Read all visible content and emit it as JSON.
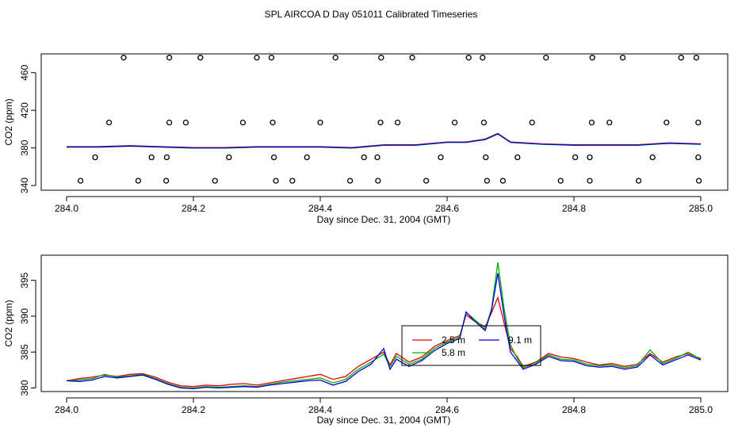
{
  "figure": {
    "title": "SPL AIRCOA D  Day 051011  Calibrated Timeseries"
  },
  "chart_data": [
    {
      "type": "line",
      "panel": "top",
      "xlabel": "Day since Dec. 31, 2004 (GMT)",
      "ylabel": "CO2 (ppm)",
      "xlim": [
        284.0,
        285.0
      ],
      "ylim": [
        335,
        480
      ],
      "xticks": [
        284.0,
        284.2,
        284.4,
        284.6,
        284.8,
        285.0
      ],
      "xtick_labels": [
        "284.0",
        "284.2",
        "284.4",
        "284.6",
        "284.8",
        "285.0"
      ],
      "yticks": [
        340,
        380,
        420,
        460
      ],
      "ytick_labels": [
        "340",
        "380",
        "420",
        "460"
      ],
      "baseline": {
        "x": [
          284.0,
          284.05,
          284.1,
          284.15,
          284.2,
          284.25,
          284.3,
          284.35,
          284.4,
          284.45,
          284.5,
          284.55,
          284.6,
          284.63,
          284.66,
          284.68,
          284.7,
          284.75,
          284.8,
          284.85,
          284.9,
          284.95,
          285.0
        ],
        "values": [
          381,
          381,
          382,
          381,
          380,
          380,
          381,
          381,
          381,
          380,
          383,
          383,
          386,
          386,
          389,
          395,
          386,
          384,
          383,
          383,
          383,
          385,
          384
        ]
      },
      "series": [
        {
          "name": "2.5 m",
          "color": "#e00000",
          "values_ref": "baseline"
        },
        {
          "name": "5.8 m",
          "color": "#00b000",
          "values_ref": "baseline"
        },
        {
          "name": "9.1 m",
          "color": "#0000e0",
          "values_ref": "baseline"
        }
      ],
      "markers": {
        "symbol": "open-circle",
        "points": [
          [
            284.09,
            476
          ],
          [
            284.162,
            476
          ],
          [
            284.211,
            476
          ],
          [
            284.3,
            476
          ],
          [
            284.323,
            476
          ],
          [
            284.424,
            476
          ],
          [
            284.496,
            476
          ],
          [
            284.545,
            476
          ],
          [
            284.634,
            476
          ],
          [
            284.656,
            476
          ],
          [
            284.756,
            476
          ],
          [
            284.829,
            476
          ],
          [
            284.877,
            476
          ],
          [
            284.969,
            476
          ],
          [
            284.993,
            476
          ],
          [
            284.067,
            407
          ],
          [
            284.162,
            407
          ],
          [
            284.188,
            407
          ],
          [
            284.278,
            407
          ],
          [
            284.325,
            407
          ],
          [
            284.4,
            407
          ],
          [
            284.495,
            407
          ],
          [
            284.522,
            407
          ],
          [
            284.612,
            407
          ],
          [
            284.658,
            407
          ],
          [
            284.734,
            407
          ],
          [
            284.828,
            407
          ],
          [
            284.856,
            407
          ],
          [
            284.946,
            407
          ],
          [
            284.996,
            407
          ],
          [
            284.045,
            370
          ],
          [
            284.134,
            370
          ],
          [
            284.158,
            370
          ],
          [
            284.256,
            370
          ],
          [
            284.327,
            370
          ],
          [
            284.379,
            370
          ],
          [
            284.469,
            370
          ],
          [
            284.49,
            370
          ],
          [
            284.59,
            370
          ],
          [
            284.661,
            370
          ],
          [
            284.711,
            370
          ],
          [
            284.802,
            370
          ],
          [
            284.825,
            370
          ],
          [
            284.924,
            370
          ],
          [
            284.996,
            370
          ],
          [
            284.022,
            345
          ],
          [
            284.113,
            345
          ],
          [
            284.157,
            345
          ],
          [
            284.234,
            345
          ],
          [
            284.33,
            345
          ],
          [
            284.356,
            345
          ],
          [
            284.447,
            345
          ],
          [
            284.491,
            345
          ],
          [
            284.567,
            345
          ],
          [
            284.663,
            345
          ],
          [
            284.688,
            345
          ],
          [
            284.779,
            345
          ],
          [
            284.825,
            345
          ],
          [
            284.902,
            345
          ],
          [
            284.997,
            345
          ]
        ]
      }
    },
    {
      "type": "line",
      "panel": "bottom",
      "xlabel": "Day since Dec. 31, 2004 (GMT)",
      "ylabel": "CO2 (ppm)",
      "xlim": [
        284.0,
        285.0
      ],
      "ylim": [
        379.5,
        398.5
      ],
      "xticks": [
        284.0,
        284.2,
        284.4,
        284.6,
        284.8,
        285.0
      ],
      "xtick_labels": [
        "284.0",
        "284.2",
        "284.4",
        "284.6",
        "284.8",
        "285.0"
      ],
      "yticks": [
        380,
        385,
        390,
        395
      ],
      "ytick_labels": [
        "380",
        "385",
        "390",
        "395"
      ],
      "x": [
        284.0,
        284.02,
        284.04,
        284.06,
        284.08,
        284.1,
        284.12,
        284.14,
        284.16,
        284.18,
        284.2,
        284.22,
        284.24,
        284.26,
        284.28,
        284.3,
        284.32,
        284.34,
        284.36,
        284.38,
        284.4,
        284.42,
        284.44,
        284.46,
        284.48,
        284.5,
        284.51,
        284.52,
        284.54,
        284.56,
        284.58,
        284.6,
        284.62,
        284.63,
        284.64,
        284.66,
        284.67,
        284.68,
        284.69,
        284.7,
        284.71,
        284.72,
        284.74,
        284.76,
        284.78,
        284.8,
        284.82,
        284.84,
        284.86,
        284.88,
        284.9,
        284.92,
        284.94,
        284.96,
        284.98,
        285.0
      ],
      "series": [
        {
          "name": "2.5 m",
          "color": "#e00000",
          "values": [
            381.0,
            381.3,
            381.5,
            381.8,
            381.6,
            381.9,
            382.0,
            381.5,
            380.8,
            380.3,
            380.2,
            380.4,
            380.3,
            380.5,
            380.6,
            380.4,
            380.7,
            381.0,
            381.3,
            381.6,
            381.9,
            381.2,
            381.6,
            383.0,
            384.0,
            385.0,
            383.2,
            384.8,
            383.6,
            384.3,
            385.8,
            386.6,
            387.3,
            390.2,
            389.5,
            388.5,
            390.5,
            392.6,
            389.0,
            385.5,
            384.4,
            383.0,
            383.6,
            384.8,
            384.3,
            384.1,
            383.6,
            383.2,
            383.4,
            383.0,
            383.3,
            384.8,
            383.6,
            384.3,
            384.8,
            384.1
          ]
        },
        {
          "name": "5.8 m",
          "color": "#00b000",
          "values": [
            381.0,
            381.1,
            381.3,
            381.9,
            381.5,
            381.7,
            381.9,
            381.3,
            380.6,
            380.1,
            380.0,
            380.2,
            380.1,
            380.2,
            380.3,
            380.2,
            380.5,
            380.8,
            381.0,
            381.2,
            381.4,
            380.7,
            381.2,
            382.6,
            383.6,
            384.7,
            383.0,
            384.4,
            383.3,
            384.0,
            385.5,
            386.4,
            387.1,
            390.5,
            389.8,
            388.2,
            391.0,
            397.5,
            391.0,
            386.0,
            384.2,
            382.8,
            383.5,
            384.6,
            384.0,
            383.9,
            383.3,
            383.1,
            383.2,
            382.8,
            383.1,
            385.3,
            383.4,
            384.1,
            385.0,
            384.0
          ]
        },
        {
          "name": "9.1 m",
          "color": "#0000e0",
          "values": [
            381.0,
            380.9,
            381.1,
            381.6,
            381.4,
            381.6,
            381.8,
            381.2,
            380.5,
            380.0,
            379.9,
            380.1,
            380.0,
            380.1,
            380.2,
            380.1,
            380.4,
            380.6,
            380.8,
            381.0,
            381.1,
            380.4,
            380.9,
            382.3,
            383.3,
            385.5,
            382.6,
            384.0,
            383.0,
            383.8,
            385.2,
            386.2,
            386.9,
            390.6,
            389.6,
            388.0,
            390.8,
            396.0,
            390.0,
            385.0,
            383.8,
            382.6,
            383.3,
            384.4,
            383.8,
            383.7,
            383.1,
            382.9,
            383.0,
            382.6,
            382.9,
            384.6,
            383.2,
            383.9,
            384.6,
            383.9
          ]
        }
      ],
      "legend": {
        "placement": "center-right",
        "entries": [
          "2.5 m",
          "5.8 m",
          "9.1 m"
        ]
      }
    }
  ]
}
